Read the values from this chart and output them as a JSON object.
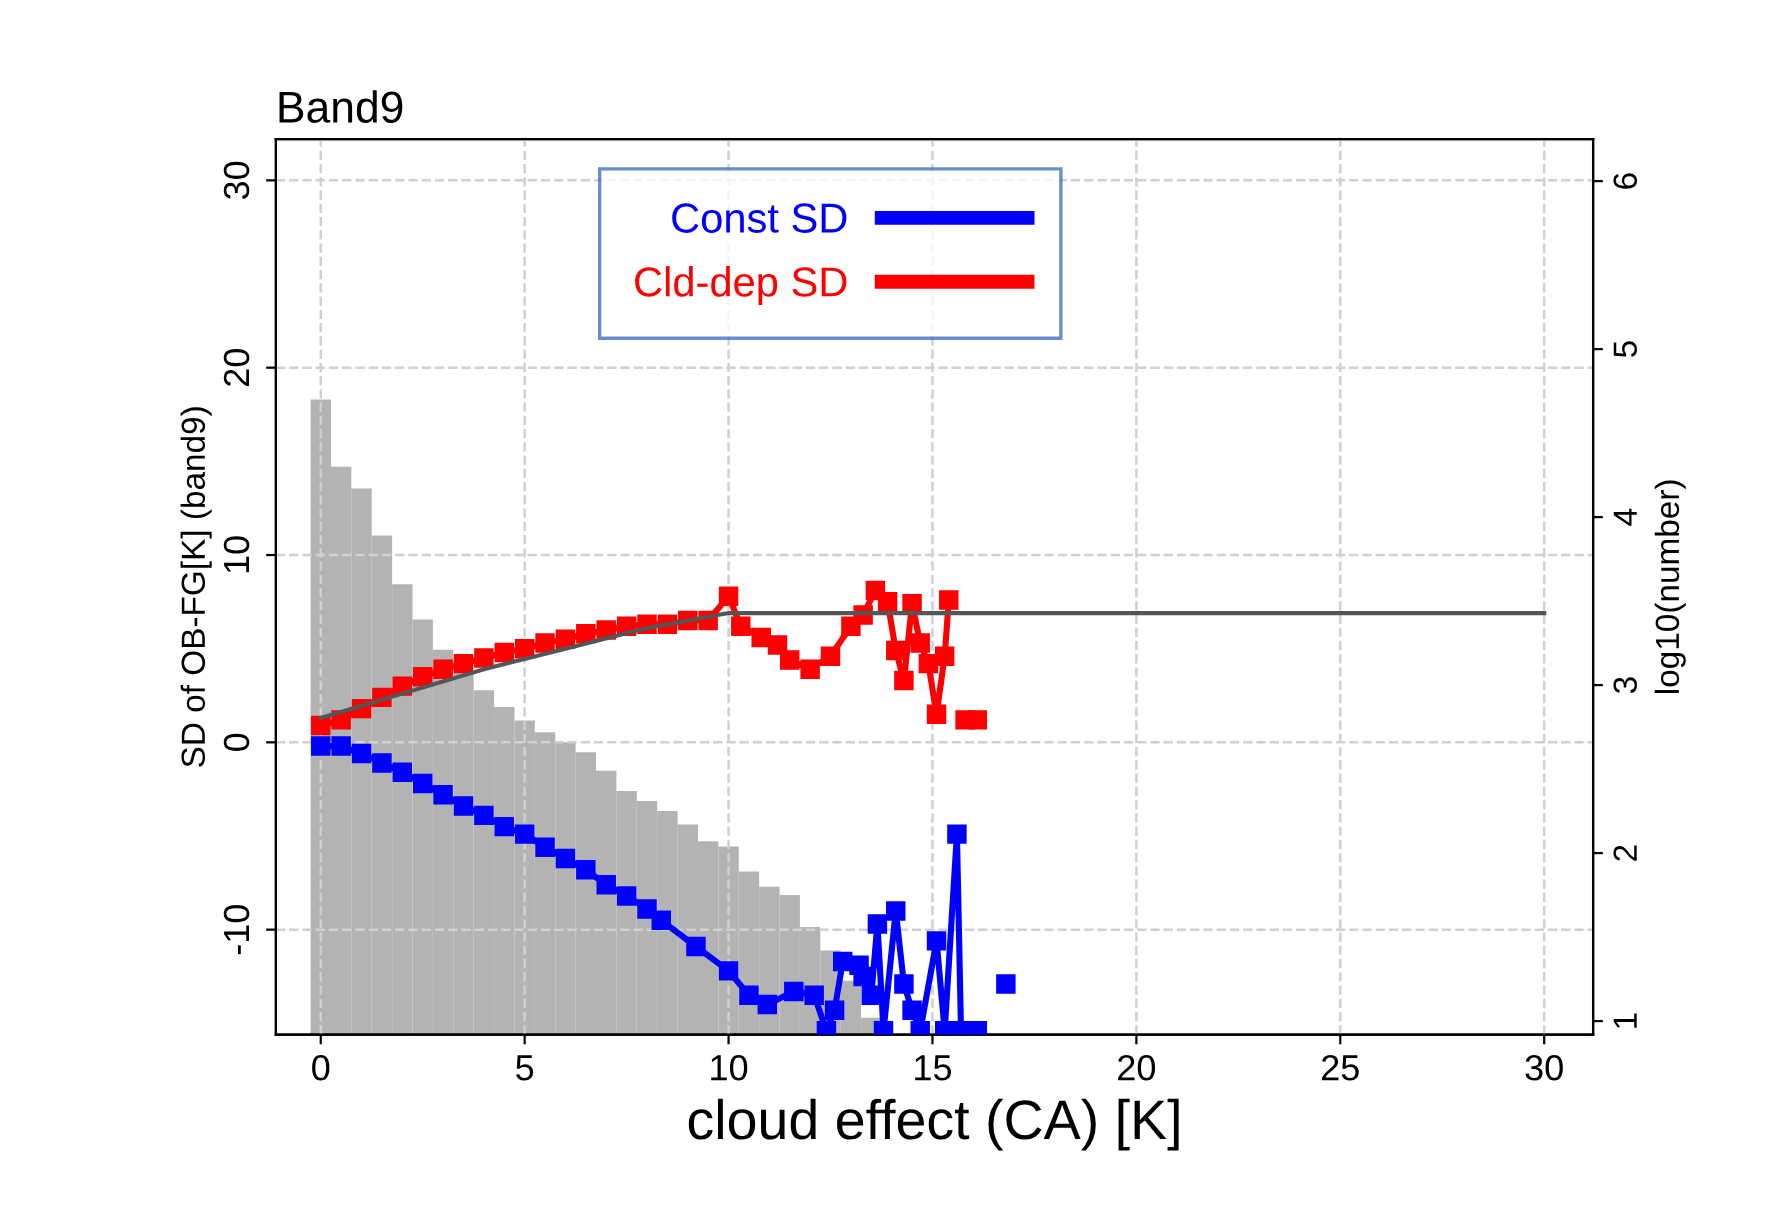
{
  "chart_data": {
    "type": "line",
    "title": "Band9",
    "xlabel": "cloud effect (CA) [K]",
    "ylabel": "SD of OB-FG[K] (band9)",
    "y2label": "log10(number)",
    "xlim": [
      -1.1,
      31.2
    ],
    "xticks": [
      0,
      5,
      10,
      15,
      20,
      25,
      30
    ],
    "ylim": [
      -15.6,
      32.2
    ],
    "yticks": [
      -10,
      0,
      10,
      20,
      30
    ],
    "y2lim": [
      0.92,
      6.25
    ],
    "y2ticks": [
      1,
      2,
      3,
      4,
      5,
      6
    ],
    "grid": true,
    "legend": "top",
    "marker": "square",
    "line_style": "solid",
    "series": [
      {
        "type": "histogram",
        "axis": "y2",
        "color": "#b3b3b3",
        "bins": [
          -0.25,
          0.25,
          0.75,
          1.25,
          1.75,
          2.25,
          2.75,
          3.25,
          3.75,
          4.25,
          4.75,
          5.25,
          5.75,
          6.25,
          6.75,
          7.25,
          7.75,
          8.25,
          8.75,
          9.25,
          9.75,
          10.25,
          10.75,
          11.25,
          11.75,
          12.25,
          12.75,
          13.25,
          13.75
        ],
        "values": [
          4.7,
          4.3,
          4.17,
          3.89,
          3.6,
          3.39,
          3.21,
          3.08,
          2.97,
          2.87,
          2.79,
          2.72,
          2.66,
          2.6,
          2.49,
          2.37,
          2.31,
          2.25,
          2.17,
          2.07,
          2.04,
          1.89,
          1.8,
          1.75,
          1.56,
          1.42,
          1.24,
          1.02
        ]
      },
      {
        "type": "line",
        "color": "#555555",
        "marker": "none",
        "x": [
          0,
          2,
          4,
          6,
          8,
          10,
          30
        ],
        "values": [
          1.3,
          2.6,
          3.9,
          5.0,
          6.1,
          6.9,
          6.9
        ]
      },
      {
        "name": "Const SD",
        "color": "#0000ff",
        "x": [
          0,
          0.5,
          1,
          1.5,
          2,
          2.5,
          3,
          3.5,
          4,
          4.5,
          5,
          5.5,
          6,
          6.5,
          7,
          7.5,
          8,
          8.35,
          9.2,
          10.0,
          10.5,
          10.95,
          11.6,
          12.1,
          12.4,
          12.6,
          12.8,
          13.2,
          13.3,
          13.5,
          13.65,
          13.8,
          14.1,
          14.3,
          14.5,
          14.7,
          15.1,
          15.3,
          15.6,
          15.7,
          16.1,
          16.4,
          16.8
        ],
        "values": [
          -0.2,
          -0.2,
          -0.6,
          -1.1,
          -1.6,
          -2.2,
          -2.8,
          -3.4,
          -3.9,
          -4.5,
          -4.9,
          -5.6,
          -6.2,
          -6.8,
          -7.6,
          -8.2,
          -8.9,
          -9.5,
          -10.9,
          -12.2,
          -13.5,
          -14.0,
          -13.3,
          -13.5,
          -15.4,
          -14.3,
          -11.7,
          -11.9,
          -12.5,
          -13.5,
          -9.7,
          -15.4,
          -9.0,
          -12.9,
          -14.3,
          -15.4,
          -10.6,
          -15.4,
          -4.9,
          -15.4,
          -15.4,
          null,
          -12.9
        ]
      },
      {
        "name": "Cld-dep SD",
        "color": "#ff0000",
        "x": [
          0,
          0.5,
          1,
          1.5,
          2,
          2.5,
          3,
          3.5,
          4,
          4.5,
          5,
          5.5,
          6,
          6.5,
          7,
          7.5,
          8,
          8.5,
          9,
          9.5,
          10,
          10.3,
          10.8,
          11.2,
          11.5,
          12,
          12.5,
          13,
          13.3,
          13.6,
          13.9,
          14.1,
          14.3,
          14.5,
          14.7,
          14.9,
          15.1,
          15.3,
          15.4,
          15.6,
          15.8,
          16.1
        ],
        "values": [
          0.9,
          1.2,
          1.8,
          2.4,
          3.0,
          3.5,
          3.9,
          4.2,
          4.5,
          4.8,
          5.0,
          5.3,
          5.5,
          5.8,
          6.0,
          6.2,
          6.3,
          6.3,
          6.5,
          6.5,
          7.8,
          6.2,
          5.6,
          5.2,
          4.4,
          3.9,
          4.6,
          6.2,
          6.8,
          8.1,
          7.5,
          4.9,
          3.3,
          7.4,
          5.3,
          4.2,
          1.5,
          4.6,
          7.6,
          null,
          1.2,
          1.2
        ]
      }
    ]
  }
}
